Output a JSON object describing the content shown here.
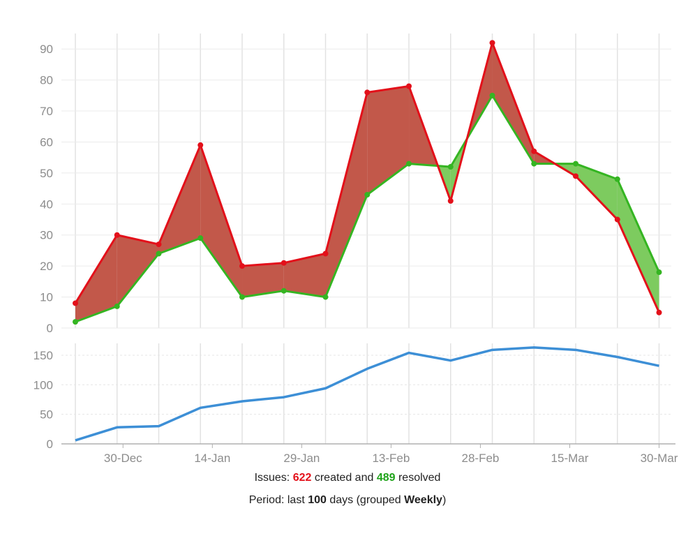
{
  "chart_data": [
    {
      "type": "area",
      "title": "",
      "xlabel": "",
      "ylabel": "",
      "x": [
        "2024-12-22",
        "2024-12-29",
        "2025-01-05",
        "2025-01-12",
        "2025-01-19",
        "2025-01-26",
        "2025-02-02",
        "2025-02-09",
        "2025-02-16",
        "2025-02-23",
        "2025-03-02",
        "2025-03-09",
        "2025-03-16",
        "2025-03-23",
        "2025-03-30"
      ],
      "ylim": [
        0,
        95
      ],
      "yticks": [
        0,
        10,
        20,
        30,
        40,
        50,
        60,
        70,
        80,
        90
      ],
      "grid": true,
      "series": [
        {
          "name": "created",
          "color": "#e3101a",
          "values": [
            8,
            30,
            27,
            59,
            20,
            21,
            24,
            76,
            78,
            41,
            92,
            57,
            49,
            35,
            5
          ]
        },
        {
          "name": "resolved",
          "color": "#35b522",
          "values": [
            2,
            7,
            24,
            29,
            10,
            12,
            10,
            43,
            53,
            52,
            75,
            53,
            53,
            48,
            18
          ]
        }
      ],
      "fill_colors": {
        "created_above": "#c2584a",
        "resolved_above": "#7dcb5f"
      }
    },
    {
      "type": "line",
      "title": "",
      "xlabel": "",
      "ylabel": "",
      "x": [
        "2024-12-22",
        "2024-12-29",
        "2025-01-05",
        "2025-01-12",
        "2025-01-19",
        "2025-01-26",
        "2025-02-02",
        "2025-02-09",
        "2025-02-16",
        "2025-02-23",
        "2025-03-02",
        "2025-03-09",
        "2025-03-16",
        "2025-03-23",
        "2025-03-30"
      ],
      "ylim": [
        0,
        170
      ],
      "yticks": [
        0,
        50,
        100,
        150
      ],
      "xticks": [
        "30-Dec",
        "14-Jan",
        "29-Jan",
        "13-Feb",
        "28-Feb",
        "15-Mar",
        "30-Mar"
      ],
      "xtick_dates": [
        "2024-12-30",
        "2025-01-14",
        "2025-01-29",
        "2025-02-13",
        "2025-02-28",
        "2025-03-15",
        "2025-03-30"
      ],
      "grid": true,
      "series": [
        {
          "name": "",
          "color": "#3d8fd6",
          "values": [
            6,
            28,
            30,
            61,
            72,
            79,
            94,
            127,
            154,
            141,
            159,
            163,
            159,
            147,
            132
          ]
        }
      ]
    }
  ],
  "caption": {
    "issues_prefix": "Issues: ",
    "created_count": "622",
    "created_text": " created and ",
    "resolved_count": "489",
    "resolved_text": " resolved",
    "period_prefix": "Period: last ",
    "period_days": "100",
    "period_middle": " days (grouped ",
    "period_group": "Weekly",
    "period_suffix": ")"
  }
}
